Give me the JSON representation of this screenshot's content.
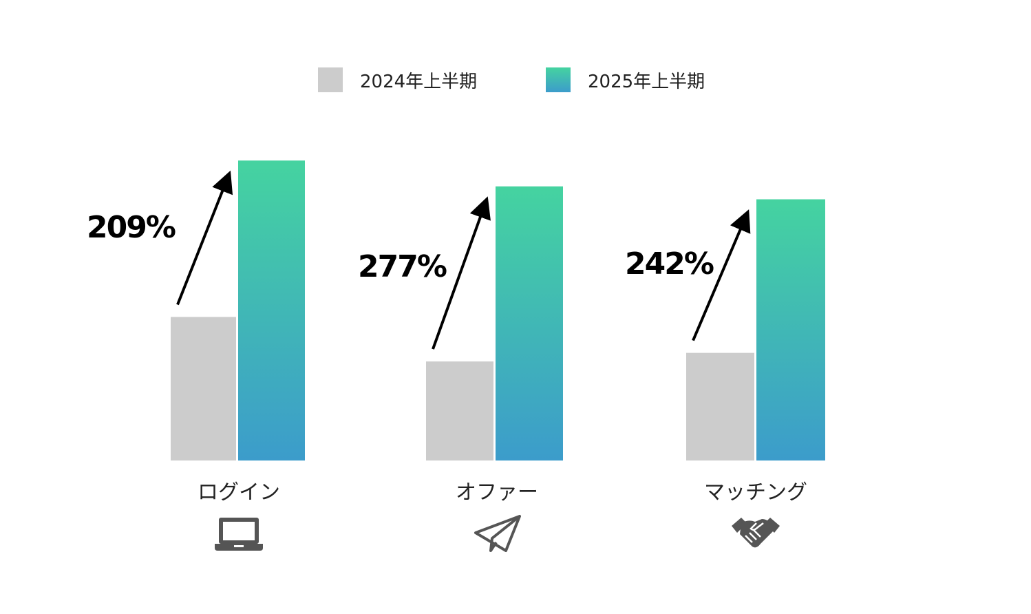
{
  "chart_data": {
    "type": "bar",
    "categories": [
      "ログイン",
      "オファー",
      "マッチング"
    ],
    "series": [
      {
        "name": "2024年上半期",
        "values": [
          100,
          69,
          75
        ],
        "color": "#cccccc"
      },
      {
        "name": "2025年上半期",
        "values": [
          209,
          191,
          182
        ],
        "color_top": "#45d3a0",
        "color_bottom": "#3c9ccb"
      }
    ],
    "growth_labels": [
      "209%",
      "277%",
      "242%"
    ],
    "category_icons": [
      "laptop-icon",
      "paper-plane-icon",
      "handshake-icon"
    ],
    "legend_position": "top-center",
    "grid": false,
    "ylim": [
      0,
      220
    ]
  }
}
